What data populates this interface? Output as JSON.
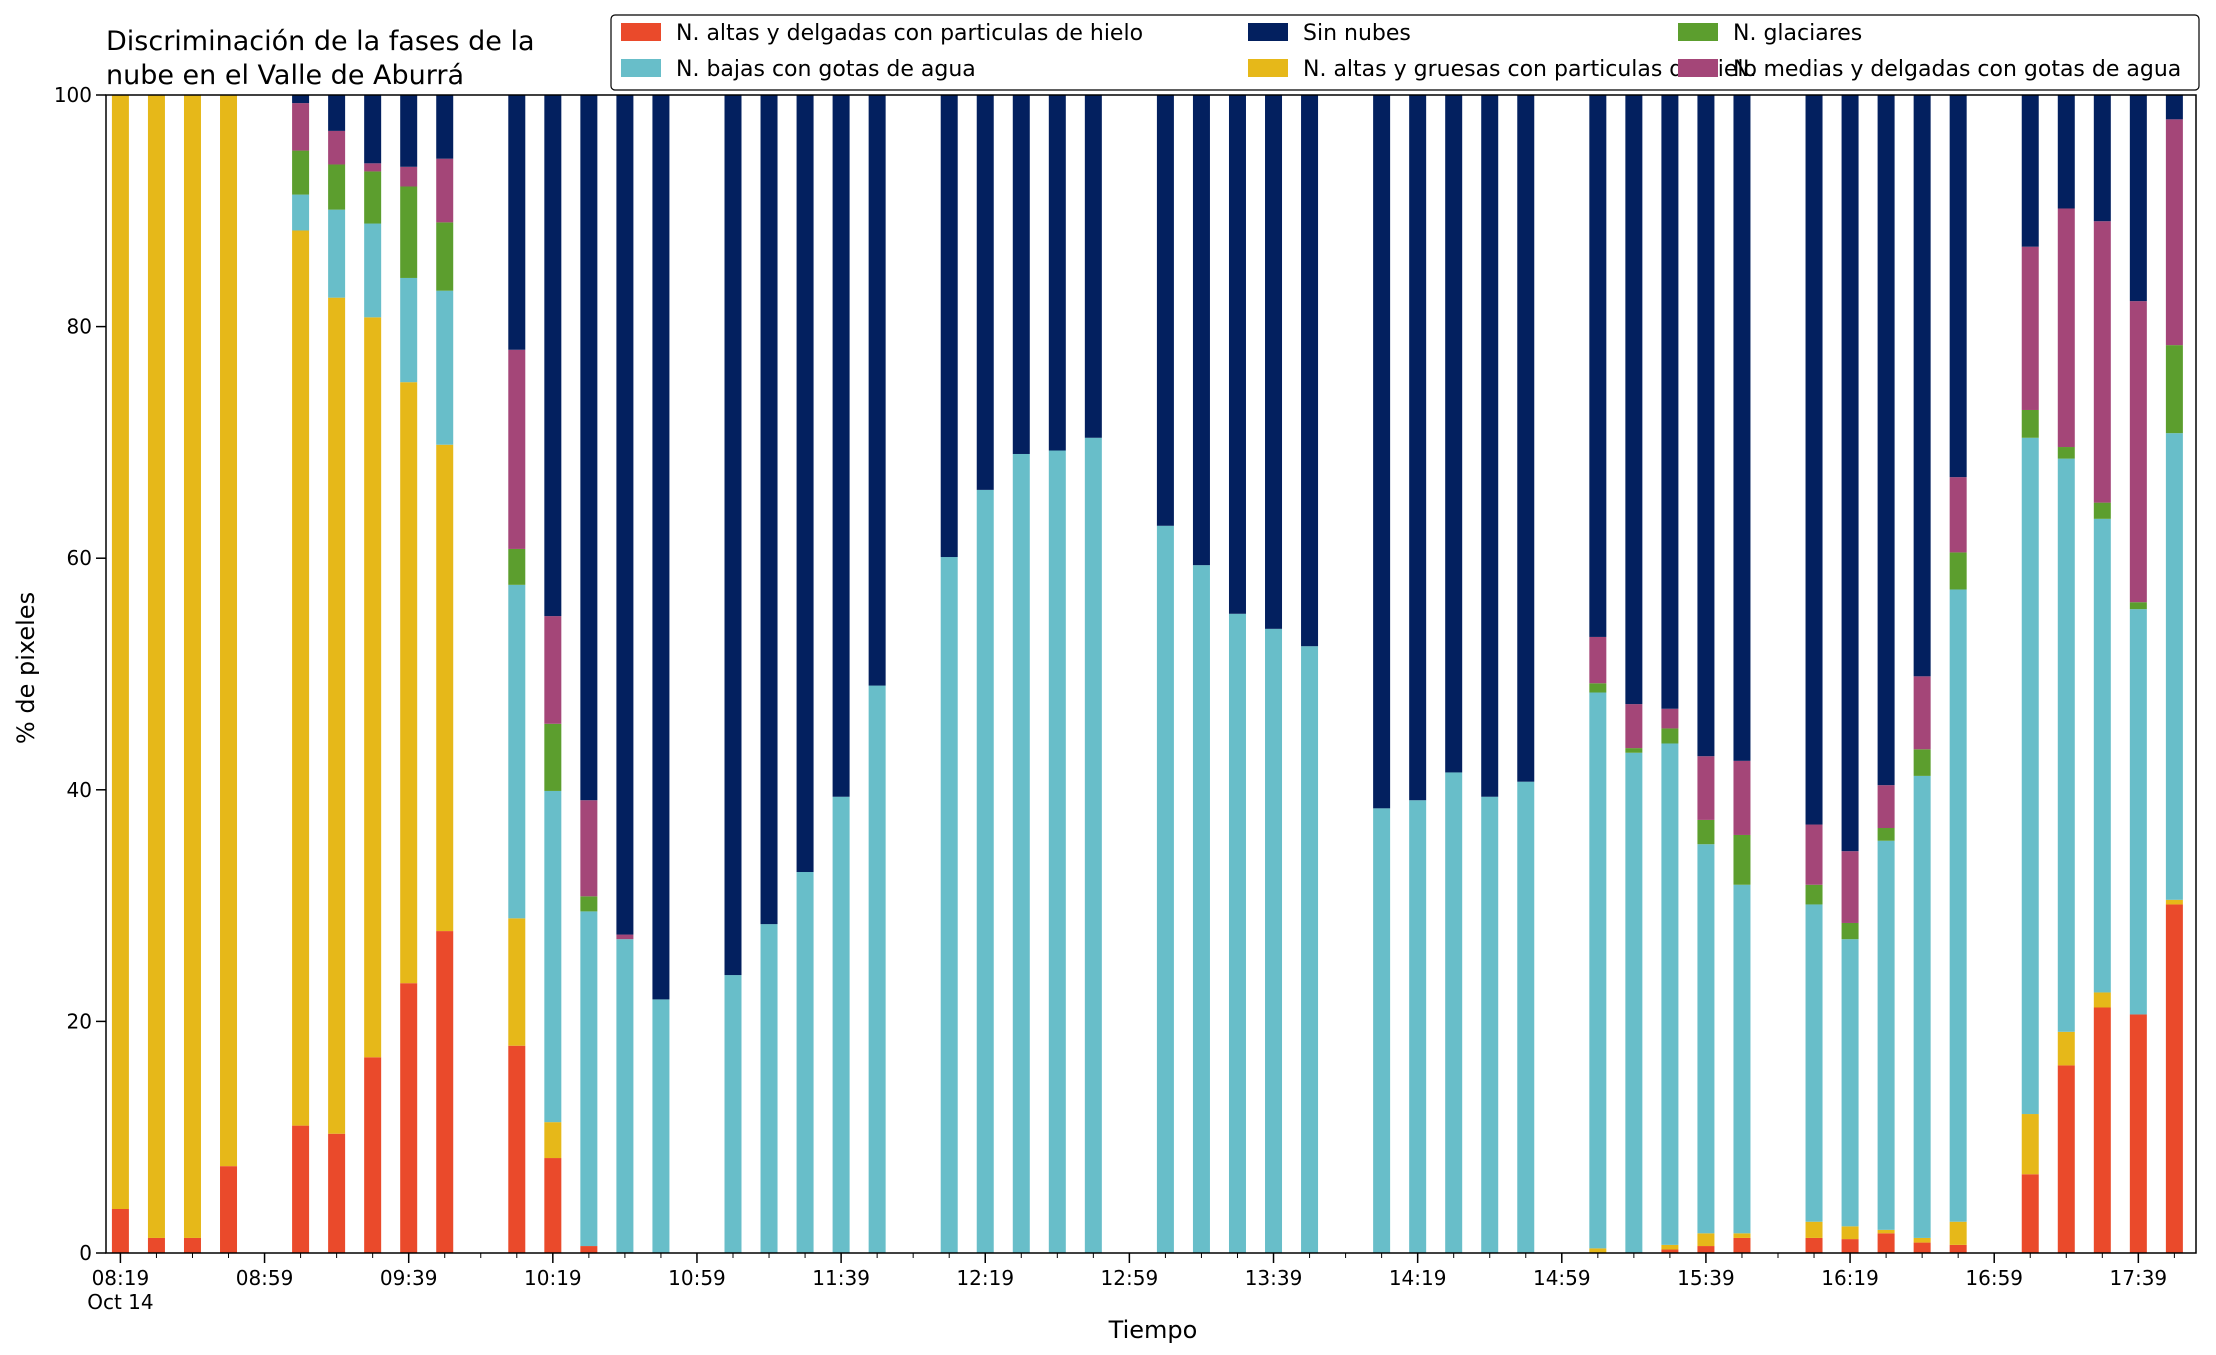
{
  "chart_data": {
    "type": "bar",
    "stacked": true,
    "title": "Discriminación de la fases de la nube en el Valle de Aburrá",
    "title_lines": [
      "Discriminación de la fases de la",
      "nube en el Valle de Aburrá"
    ],
    "xlabel": "Tiempo",
    "ylabel": "% de pixeles",
    "ylim": [
      0,
      100
    ],
    "yticks": [
      0,
      20,
      40,
      60,
      80,
      100
    ],
    "x_minutes_range": [
      495,
      1075
    ],
    "xticks": [
      {
        "minutes": 499,
        "label": "08:19",
        "sublabel": "Oct 14"
      },
      {
        "minutes": 539,
        "label": "08:59"
      },
      {
        "minutes": 579,
        "label": "09:39"
      },
      {
        "minutes": 619,
        "label": "10:19"
      },
      {
        "minutes": 659,
        "label": "10:59"
      },
      {
        "minutes": 699,
        "label": "11:39"
      },
      {
        "minutes": 739,
        "label": "12:19"
      },
      {
        "minutes": 779,
        "label": "12:59"
      },
      {
        "minutes": 819,
        "label": "13:39"
      },
      {
        "minutes": 859,
        "label": "14:19"
      },
      {
        "minutes": 899,
        "label": "14:59"
      },
      {
        "minutes": 939,
        "label": "15:39"
      },
      {
        "minutes": 979,
        "label": "16:19"
      },
      {
        "minutes": 1019,
        "label": "16:59"
      },
      {
        "minutes": 1059,
        "label": "17:39"
      }
    ],
    "legend_placement": "top-right",
    "legend_order": [
      0,
      2,
      5,
      1,
      3,
      4
    ],
    "series": [
      {
        "name": "N. altas y delgadas con particulas de hielo",
        "color": "#ea4a2b"
      },
      {
        "name": "N. altas y gruesas con particulas de hielo",
        "color": "#e6b819"
      },
      {
        "name": "N. bajas con gotas de agua",
        "color": "#68bec9"
      },
      {
        "name": "N. glaciares",
        "color": "#5c9e2e"
      },
      {
        "name": "N. medias y delgadas con gotas de agua",
        "color": "#a44678"
      },
      {
        "name": "Sin nubes",
        "color": "#03205f"
      }
    ],
    "bars": [
      {
        "time": "08:19",
        "values": [
          3.8,
          96.2,
          0,
          0,
          0,
          0
        ]
      },
      {
        "time": "08:29",
        "values": [
          1.3,
          98.7,
          0,
          0,
          0,
          0
        ]
      },
      {
        "time": "08:39",
        "values": [
          1.3,
          98.7,
          0,
          0,
          0,
          0
        ]
      },
      {
        "time": "08:49",
        "values": [
          7.5,
          92.5,
          0,
          0,
          0,
          0
        ]
      },
      {
        "time": "09:09",
        "values": [
          11.0,
          77.3,
          3.1,
          3.8,
          4.1,
          0.7
        ]
      },
      {
        "time": "09:19",
        "values": [
          10.3,
          72.2,
          7.6,
          3.9,
          2.9,
          3.1
        ]
      },
      {
        "time": "09:29",
        "values": [
          16.9,
          63.9,
          8.1,
          4.5,
          0.7,
          5.9
        ]
      },
      {
        "time": "09:39",
        "values": [
          23.3,
          51.9,
          9.0,
          7.9,
          1.7,
          6.2
        ]
      },
      {
        "time": "09:49",
        "values": [
          27.8,
          42.0,
          13.3,
          5.9,
          5.5,
          5.5
        ]
      },
      {
        "time": "10:09",
        "values": [
          17.9,
          11.0,
          28.8,
          3.1,
          17.2,
          22.0
        ]
      },
      {
        "time": "10:19",
        "values": [
          8.2,
          3.1,
          28.6,
          5.8,
          9.3,
          45.0
        ]
      },
      {
        "time": "10:29",
        "values": [
          0.6,
          0,
          28.9,
          1.3,
          8.3,
          60.9
        ]
      },
      {
        "time": "10:39",
        "values": [
          0,
          0,
          27.1,
          0,
          0.4,
          72.5
        ]
      },
      {
        "time": "10:49",
        "values": [
          0,
          0,
          21.9,
          0,
          0,
          78.1
        ]
      },
      {
        "time": "11:09",
        "values": [
          0,
          0,
          24.0,
          0,
          0,
          76.0
        ]
      },
      {
        "time": "11:19",
        "values": [
          0,
          0,
          28.4,
          0,
          0,
          71.6
        ]
      },
      {
        "time": "11:29",
        "values": [
          0,
          0,
          32.9,
          0,
          0,
          67.1
        ]
      },
      {
        "time": "11:39",
        "values": [
          0,
          0,
          39.4,
          0,
          0,
          60.6
        ]
      },
      {
        "time": "11:49",
        "values": [
          0,
          0,
          49.0,
          0,
          0,
          51.0
        ]
      },
      {
        "time": "12:09",
        "values": [
          0,
          0,
          60.1,
          0,
          0,
          39.9
        ]
      },
      {
        "time": "12:19",
        "values": [
          0,
          0,
          65.9,
          0,
          0,
          34.1
        ]
      },
      {
        "time": "12:29",
        "values": [
          0,
          0,
          69.0,
          0,
          0,
          31.0
        ]
      },
      {
        "time": "12:39",
        "values": [
          0,
          0,
          69.3,
          0,
          0,
          30.7
        ]
      },
      {
        "time": "12:49",
        "values": [
          0,
          0,
          70.4,
          0,
          0,
          29.6
        ]
      },
      {
        "time": "13:09",
        "values": [
          0,
          0,
          62.8,
          0,
          0,
          37.2
        ]
      },
      {
        "time": "13:19",
        "values": [
          0,
          0,
          59.4,
          0,
          0,
          40.6
        ]
      },
      {
        "time": "13:29",
        "values": [
          0,
          0,
          55.2,
          0,
          0,
          44.8
        ]
      },
      {
        "time": "13:39",
        "values": [
          0,
          0,
          53.9,
          0,
          0,
          46.1
        ]
      },
      {
        "time": "13:49",
        "values": [
          0,
          0,
          52.4,
          0,
          0,
          47.6
        ]
      },
      {
        "time": "14:09",
        "values": [
          0,
          0,
          38.4,
          0,
          0,
          61.6
        ]
      },
      {
        "time": "14:19",
        "values": [
          0,
          0,
          39.1,
          0,
          0,
          60.9
        ]
      },
      {
        "time": "14:29",
        "values": [
          0,
          0,
          41.5,
          0,
          0,
          58.5
        ]
      },
      {
        "time": "14:39",
        "values": [
          0,
          0,
          39.4,
          0,
          0,
          60.6
        ]
      },
      {
        "time": "14:49",
        "values": [
          0,
          0,
          40.7,
          0,
          0,
          59.3
        ]
      },
      {
        "time": "15:09",
        "values": [
          0,
          0.4,
          48.0,
          0.8,
          4.0,
          46.8
        ]
      },
      {
        "time": "15:19",
        "values": [
          0,
          0,
          43.2,
          0.4,
          3.8,
          52.6
        ]
      },
      {
        "time": "15:29",
        "values": [
          0.3,
          0.4,
          43.3,
          1.3,
          1.7,
          53.0
        ]
      },
      {
        "time": "15:39",
        "values": [
          0.6,
          1.1,
          33.6,
          2.1,
          5.5,
          57.1
        ]
      },
      {
        "time": "15:49",
        "values": [
          1.3,
          0.4,
          30.1,
          4.3,
          6.4,
          57.5
        ]
      },
      {
        "time": "16:09",
        "values": [
          1.3,
          1.4,
          27.4,
          1.7,
          5.2,
          63.0
        ]
      },
      {
        "time": "16:19",
        "values": [
          1.2,
          1.1,
          24.8,
          1.4,
          6.2,
          65.3
        ]
      },
      {
        "time": "16:29",
        "values": [
          1.7,
          0.3,
          33.6,
          1.1,
          3.7,
          59.6
        ]
      },
      {
        "time": "16:39",
        "values": [
          0.9,
          0.4,
          39.9,
          2.3,
          6.3,
          50.2
        ]
      },
      {
        "time": "16:49",
        "values": [
          0.7,
          2.0,
          54.6,
          3.2,
          6.5,
          33.0
        ]
      },
      {
        "time": "17:09",
        "values": [
          6.8,
          5.2,
          58.4,
          2.4,
          14.1,
          13.1
        ]
      },
      {
        "time": "17:19",
        "values": [
          16.2,
          2.9,
          49.5,
          1.0,
          20.6,
          9.8
        ]
      },
      {
        "time": "17:29",
        "values": [
          21.2,
          1.3,
          40.9,
          1.4,
          24.3,
          10.9
        ]
      },
      {
        "time": "17:39",
        "values": [
          20.6,
          0,
          35.0,
          0.6,
          26.0,
          17.8
        ]
      },
      {
        "time": "17:49",
        "values": [
          30.1,
          0.4,
          40.3,
          7.6,
          19.5,
          2.1
        ]
      }
    ]
  }
}
